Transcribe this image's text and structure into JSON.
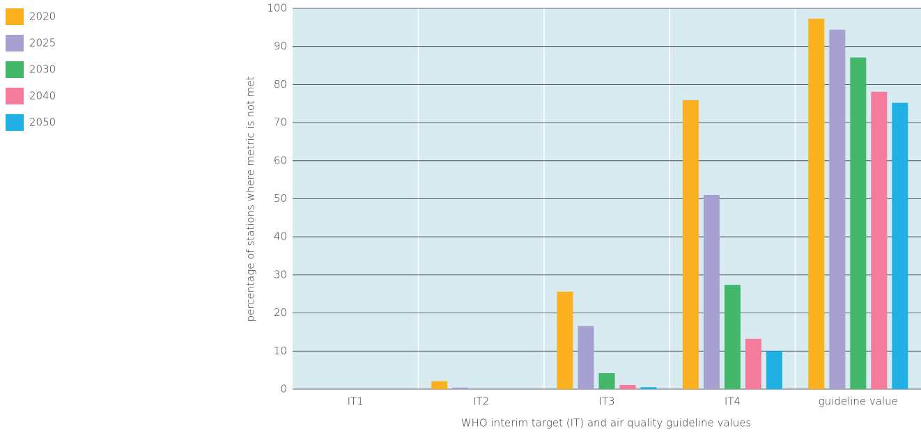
{
  "chart_data": {
    "type": "bar",
    "xlabel": "WHO interim target (IT) and air quality guideline values",
    "ylabel": "percentage of stations where metric is not met",
    "categories": [
      "IT1",
      "IT2",
      "IT3",
      "IT4",
      "guideline value"
    ],
    "series": [
      {
        "name": "2020",
        "color": "#fbb11f",
        "values": [
          0,
          2.1,
          25.6,
          75.9,
          97.3
        ]
      },
      {
        "name": "2025",
        "color": "#a7a1d1",
        "values": [
          0,
          0.4,
          16.6,
          51,
          94.4
        ]
      },
      {
        "name": "2030",
        "color": "#44b86a",
        "values": [
          0,
          0,
          4.2,
          27.4,
          87.1
        ]
      },
      {
        "name": "2040",
        "color": "#f47b9b",
        "values": [
          0,
          0,
          1.1,
          13.2,
          78.1
        ]
      },
      {
        "name": "2050",
        "color": "#20b0e3",
        "values": [
          0,
          0,
          0.5,
          10,
          75.2
        ]
      }
    ],
    "ylim": [
      0,
      100
    ],
    "yticks": [
      0,
      10,
      20,
      30,
      40,
      50,
      60,
      70,
      80,
      90,
      100
    ],
    "grid": true,
    "legend": "left"
  }
}
